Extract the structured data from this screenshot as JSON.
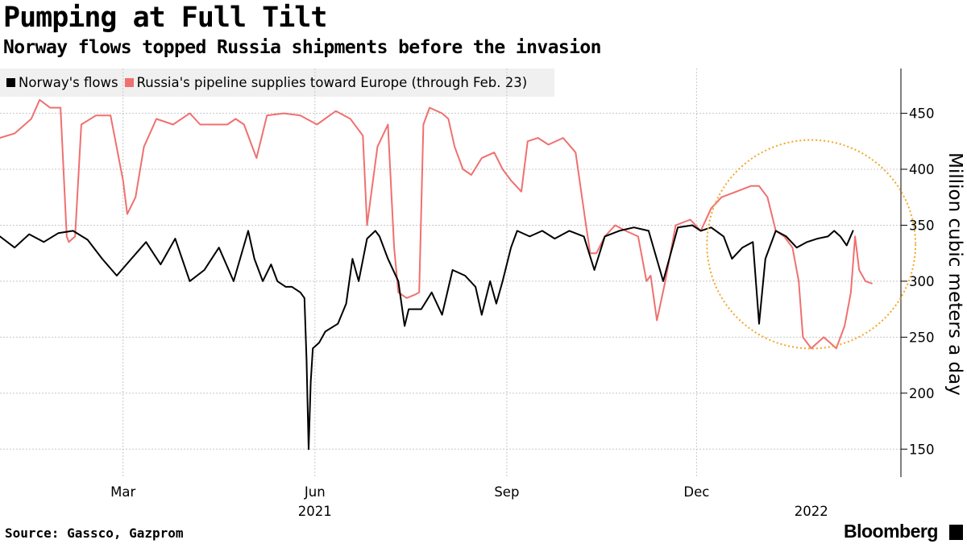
{
  "title": "Pumping at Full Tilt",
  "subtitle": "Norway flows topped Russia shipments before the invasion",
  "source": "Source: Gassco, Gazprom",
  "brand": "Bloomberg",
  "legend": [
    {
      "label": "Norway's flows",
      "color": "#000000"
    },
    {
      "label": "Russia's pipeline supplies toward Europe (through Feb. 23)",
      "color": "#f07070"
    }
  ],
  "chart_data": {
    "type": "line",
    "title": "Pumping at Full Tilt",
    "subtitle": "Norway flows topped Russia shipments before the invasion",
    "ylabel": "Million cubic meters a day",
    "ylim": [
      125,
      490
    ],
    "xlim": [
      "2021-01-01",
      "2022-03-09"
    ],
    "y_ticks": [
      150,
      200,
      250,
      300,
      350,
      400,
      450
    ],
    "x_ticks": [
      {
        "label": "Mar",
        "date": "2021-03-01"
      },
      {
        "label": "Jun",
        "date": "2021-06-01"
      },
      {
        "label": "Sep",
        "date": "2021-09-01"
      },
      {
        "label": "Dec",
        "date": "2021-12-01"
      }
    ],
    "year_labels": [
      {
        "label": "2021",
        "date": "2021-06-01"
      },
      {
        "label": "2022",
        "date": "2022-01-25"
      }
    ],
    "grid": true,
    "y_axis_position": "right",
    "legend_position": "top-left",
    "annotation": {
      "type": "dotted-circle",
      "color": "#f5a623",
      "center": {
        "date": "2022-01-25",
        "value": 333
      },
      "radius_days": 50
    },
    "series": [
      {
        "name": "Norway's flows",
        "color": "#000000",
        "points": [
          [
            "2021-01-01",
            340
          ],
          [
            "2021-01-08",
            330
          ],
          [
            "2021-01-15",
            342
          ],
          [
            "2021-01-22",
            335
          ],
          [
            "2021-01-29",
            343
          ],
          [
            "2021-02-05",
            345
          ],
          [
            "2021-02-12",
            337
          ],
          [
            "2021-02-19",
            320
          ],
          [
            "2021-02-26",
            305
          ],
          [
            "2021-03-05",
            320
          ],
          [
            "2021-03-12",
            335
          ],
          [
            "2021-03-19",
            315
          ],
          [
            "2021-03-26",
            338
          ],
          [
            "2021-04-02",
            300
          ],
          [
            "2021-04-09",
            310
          ],
          [
            "2021-04-16",
            330
          ],
          [
            "2021-04-23",
            300
          ],
          [
            "2021-04-30",
            345
          ],
          [
            "2021-05-03",
            320
          ],
          [
            "2021-05-07",
            300
          ],
          [
            "2021-05-11",
            315
          ],
          [
            "2021-05-14",
            300
          ],
          [
            "2021-05-18",
            295
          ],
          [
            "2021-05-21",
            295
          ],
          [
            "2021-05-25",
            290
          ],
          [
            "2021-05-27",
            285
          ],
          [
            "2021-05-28",
            230
          ],
          [
            "2021-05-29",
            150
          ],
          [
            "2021-05-30",
            210
          ],
          [
            "2021-05-31",
            240
          ],
          [
            "2021-06-03",
            245
          ],
          [
            "2021-06-06",
            255
          ],
          [
            "2021-06-12",
            262
          ],
          [
            "2021-06-16",
            280
          ],
          [
            "2021-06-19",
            320
          ],
          [
            "2021-06-22",
            300
          ],
          [
            "2021-06-26",
            338
          ],
          [
            "2021-06-30",
            345
          ],
          [
            "2021-07-02",
            340
          ],
          [
            "2021-07-06",
            320
          ],
          [
            "2021-07-11",
            300
          ],
          [
            "2021-07-14",
            260
          ],
          [
            "2021-07-16",
            275
          ],
          [
            "2021-07-22",
            275
          ],
          [
            "2021-07-27",
            290
          ],
          [
            "2021-08-01",
            270
          ],
          [
            "2021-08-06",
            310
          ],
          [
            "2021-08-12",
            305
          ],
          [
            "2021-08-17",
            295
          ],
          [
            "2021-08-20",
            270
          ],
          [
            "2021-08-24",
            300
          ],
          [
            "2021-08-27",
            280
          ],
          [
            "2021-08-30",
            300
          ],
          [
            "2021-09-03",
            330
          ],
          [
            "2021-09-06",
            345
          ],
          [
            "2021-09-12",
            340
          ],
          [
            "2021-09-18",
            345
          ],
          [
            "2021-09-24",
            338
          ],
          [
            "2021-10-01",
            345
          ],
          [
            "2021-10-08",
            340
          ],
          [
            "2021-10-13",
            310
          ],
          [
            "2021-10-18",
            340
          ],
          [
            "2021-10-25",
            345
          ],
          [
            "2021-11-01",
            348
          ],
          [
            "2021-11-08",
            345
          ],
          [
            "2021-11-15",
            300
          ],
          [
            "2021-11-22",
            348
          ],
          [
            "2021-11-29",
            350
          ],
          [
            "2021-12-03",
            345
          ],
          [
            "2021-12-08",
            348
          ],
          [
            "2021-12-14",
            340
          ],
          [
            "2021-12-18",
            320
          ],
          [
            "2021-12-23",
            330
          ],
          [
            "2021-12-28",
            335
          ],
          [
            "2021-12-31",
            262
          ],
          [
            "2022-01-03",
            320
          ],
          [
            "2022-01-08",
            345
          ],
          [
            "2022-01-13",
            340
          ],
          [
            "2022-01-18",
            330
          ],
          [
            "2022-01-23",
            335
          ],
          [
            "2022-01-28",
            338
          ],
          [
            "2022-02-02",
            340
          ],
          [
            "2022-02-05",
            345
          ],
          [
            "2022-02-08",
            340
          ],
          [
            "2022-02-11",
            332
          ],
          [
            "2022-02-14",
            345
          ]
        ]
      },
      {
        "name": "Russia's pipeline supplies toward Europe (through Feb. 23)",
        "color": "#f07070",
        "points": [
          [
            "2021-01-01",
            428
          ],
          [
            "2021-01-08",
            432
          ],
          [
            "2021-01-16",
            445
          ],
          [
            "2021-01-20",
            462
          ],
          [
            "2021-01-25",
            455
          ],
          [
            "2021-01-30",
            455
          ],
          [
            "2021-02-02",
            340
          ],
          [
            "2021-02-03",
            335
          ],
          [
            "2021-02-06",
            340
          ],
          [
            "2021-02-09",
            440
          ],
          [
            "2021-02-16",
            448
          ],
          [
            "2021-02-23",
            448
          ],
          [
            "2021-03-01",
            390
          ],
          [
            "2021-03-03",
            360
          ],
          [
            "2021-03-07",
            375
          ],
          [
            "2021-03-11",
            420
          ],
          [
            "2021-03-17",
            445
          ],
          [
            "2021-03-25",
            440
          ],
          [
            "2021-04-02",
            450
          ],
          [
            "2021-04-07",
            440
          ],
          [
            "2021-04-11",
            440
          ],
          [
            "2021-04-16",
            440
          ],
          [
            "2021-04-20",
            440
          ],
          [
            "2021-04-24",
            445
          ],
          [
            "2021-04-28",
            440
          ],
          [
            "2021-05-04",
            410
          ],
          [
            "2021-05-09",
            448
          ],
          [
            "2021-05-17",
            450
          ],
          [
            "2021-05-25",
            448
          ],
          [
            "2021-06-02",
            440
          ],
          [
            "2021-06-11",
            452
          ],
          [
            "2021-06-18",
            445
          ],
          [
            "2021-06-24",
            430
          ],
          [
            "2021-06-26",
            350
          ],
          [
            "2021-07-01",
            420
          ],
          [
            "2021-07-06",
            440
          ],
          [
            "2021-07-09",
            330
          ],
          [
            "2021-07-11",
            290
          ],
          [
            "2021-07-15",
            285
          ],
          [
            "2021-07-19",
            288
          ],
          [
            "2021-07-21",
            290
          ],
          [
            "2021-07-23",
            440
          ],
          [
            "2021-07-26",
            455
          ],
          [
            "2021-08-01",
            450
          ],
          [
            "2021-08-04",
            445
          ],
          [
            "2021-08-07",
            420
          ],
          [
            "2021-08-11",
            400
          ],
          [
            "2021-08-15",
            395
          ],
          [
            "2021-08-20",
            410
          ],
          [
            "2021-08-26",
            415
          ],
          [
            "2021-08-30",
            400
          ],
          [
            "2021-09-03",
            390
          ],
          [
            "2021-09-08",
            380
          ],
          [
            "2021-09-11",
            425
          ],
          [
            "2021-09-16",
            428
          ],
          [
            "2021-09-21",
            422
          ],
          [
            "2021-09-28",
            428
          ],
          [
            "2021-10-04",
            415
          ],
          [
            "2021-10-09",
            350
          ],
          [
            "2021-10-11",
            325
          ],
          [
            "2021-10-14",
            325
          ],
          [
            "2021-10-18",
            340
          ],
          [
            "2021-10-23",
            350
          ],
          [
            "2021-10-28",
            345
          ],
          [
            "2021-11-03",
            340
          ],
          [
            "2021-11-07",
            300
          ],
          [
            "2021-11-09",
            305
          ],
          [
            "2021-11-12",
            265
          ],
          [
            "2021-11-16",
            300
          ],
          [
            "2021-11-21",
            350
          ],
          [
            "2021-11-28",
            355
          ],
          [
            "2021-12-03",
            345
          ],
          [
            "2021-12-08",
            365
          ],
          [
            "2021-12-13",
            375
          ],
          [
            "2021-12-20",
            380
          ],
          [
            "2021-12-27",
            385
          ],
          [
            "2021-12-31",
            385
          ],
          [
            "2022-01-04",
            375
          ],
          [
            "2022-01-08",
            345
          ],
          [
            "2022-01-12",
            340
          ],
          [
            "2022-01-16",
            330
          ],
          [
            "2022-01-19",
            300
          ],
          [
            "2022-01-21",
            250
          ],
          [
            "2022-01-25",
            240
          ],
          [
            "2022-01-28",
            245
          ],
          [
            "2022-01-31",
            250
          ],
          [
            "2022-02-03",
            245
          ],
          [
            "2022-02-06",
            240
          ],
          [
            "2022-02-10",
            260
          ],
          [
            "2022-02-13",
            290
          ],
          [
            "2022-02-15",
            340
          ],
          [
            "2022-02-17",
            310
          ],
          [
            "2022-02-20",
            300
          ],
          [
            "2022-02-23",
            298
          ]
        ]
      }
    ]
  }
}
